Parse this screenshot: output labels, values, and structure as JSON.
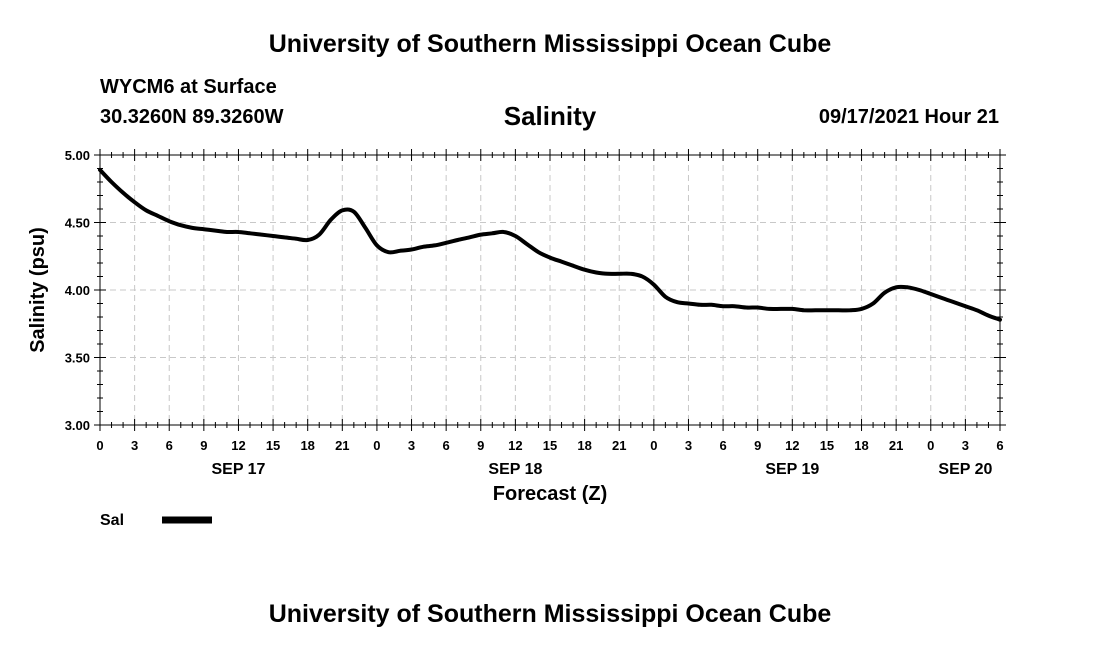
{
  "header": {
    "title": "University of Southern Mississippi Ocean Cube",
    "station": "WYCM6 at Surface",
    "coords": "30.3260N  89.3260W",
    "datetime": "09/17/2021 Hour 21"
  },
  "footer": {
    "title": "University of Southern Mississippi Ocean Cube"
  },
  "chart_data": {
    "type": "line",
    "title": "Salinity",
    "xlabel": "Forecast (Z)",
    "ylabel": "Salinity (psu)",
    "ylim": [
      3.0,
      5.0
    ],
    "yticks": [
      "3.00",
      "3.50",
      "4.00",
      "4.50",
      "5.00"
    ],
    "xlim_hours": [
      0,
      78
    ],
    "xticks": [
      "0",
      "3",
      "6",
      "9",
      "12",
      "15",
      "18",
      "21",
      "0",
      "3",
      "6",
      "9",
      "12",
      "15",
      "18",
      "21",
      "0",
      "3",
      "6",
      "9",
      "12",
      "15",
      "18",
      "21",
      "0",
      "3",
      "6"
    ],
    "date_labels": [
      {
        "label": "SEP 17",
        "hour": 12
      },
      {
        "label": "SEP 18",
        "hour": 36
      },
      {
        "label": "SEP 19",
        "hour": 60
      },
      {
        "label": "SEP 20",
        "hour": 75
      }
    ],
    "grid": true,
    "legend": {
      "placement": "bottom-left"
    },
    "series": [
      {
        "name": "Sal",
        "color": "#000000",
        "x": [
          0,
          1,
          2,
          3,
          4,
          5,
          6,
          7,
          8,
          9,
          10,
          11,
          12,
          13,
          14,
          15,
          16,
          17,
          18,
          19,
          20,
          21,
          22,
          23,
          24,
          25,
          26,
          27,
          28,
          29,
          30,
          31,
          32,
          33,
          34,
          35,
          36,
          37,
          38,
          39,
          40,
          41,
          42,
          43,
          44,
          45,
          46,
          47,
          48,
          49,
          50,
          51,
          52,
          53,
          54,
          55,
          56,
          57,
          58,
          59,
          60,
          61,
          62,
          63,
          64,
          65,
          66,
          67,
          68,
          69,
          70,
          71,
          72,
          73,
          74,
          75,
          76,
          77,
          78
        ],
        "values": [
          4.89,
          4.8,
          4.72,
          4.65,
          4.59,
          4.55,
          4.51,
          4.48,
          4.46,
          4.45,
          4.44,
          4.43,
          4.43,
          4.42,
          4.41,
          4.4,
          4.39,
          4.38,
          4.37,
          4.41,
          4.52,
          4.59,
          4.58,
          4.46,
          4.33,
          4.28,
          4.29,
          4.3,
          4.32,
          4.33,
          4.35,
          4.37,
          4.39,
          4.41,
          4.42,
          4.43,
          4.4,
          4.34,
          4.28,
          4.24,
          4.21,
          4.18,
          4.15,
          4.13,
          4.12,
          4.12,
          4.12,
          4.1,
          4.04,
          3.95,
          3.91,
          3.9,
          3.89,
          3.89,
          3.88,
          3.88,
          3.87,
          3.87,
          3.86,
          3.86,
          3.86,
          3.85,
          3.85,
          3.85,
          3.85,
          3.85,
          3.86,
          3.9,
          3.98,
          4.02,
          4.02,
          4.0,
          3.97,
          3.94,
          3.91,
          3.88,
          3.85,
          3.81,
          3.78
        ]
      }
    ]
  }
}
